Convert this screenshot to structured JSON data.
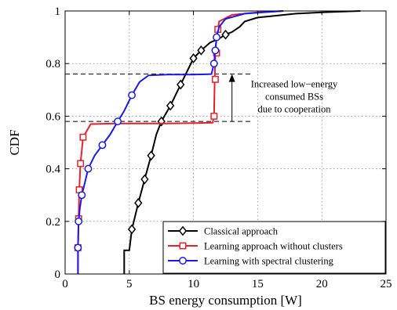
{
  "chart_data": {
    "type": "line",
    "title": "",
    "xlabel": "BS energy consumption [W]",
    "ylabel": "CDF",
    "xlim": [
      0,
      25
    ],
    "ylim": [
      0,
      1
    ],
    "xticks": [
      "0",
      "5",
      "10",
      "15",
      "20",
      "25"
    ],
    "yticks": [
      "0",
      "0.2",
      "0.4",
      "0.6",
      "0.8",
      "1"
    ],
    "grid": true,
    "legend_position": "bottom-right",
    "series": [
      {
        "name": "Classical approach",
        "color": "#000000",
        "marker": "diamond",
        "points": [
          [
            4.6,
            0
          ],
          [
            4.6,
            0.09
          ],
          [
            5.0,
            0.09
          ],
          [
            5.2,
            0.17
          ],
          [
            5.7,
            0.27
          ],
          [
            6.2,
            0.36
          ],
          [
            6.7,
            0.45
          ],
          [
            7.1,
            0.53
          ],
          [
            7.5,
            0.58
          ],
          [
            8.2,
            0.64
          ],
          [
            9.0,
            0.72
          ],
          [
            10.0,
            0.82
          ],
          [
            10.6,
            0.85
          ],
          [
            11.3,
            0.88
          ],
          [
            12.0,
            0.895
          ],
          [
            12.5,
            0.91
          ],
          [
            13.0,
            0.92
          ],
          [
            13.6,
            0.94
          ],
          [
            14.0,
            0.96
          ],
          [
            15.0,
            0.975
          ],
          [
            16.0,
            0.98
          ],
          [
            18.0,
            0.99
          ],
          [
            20.0,
            0.995
          ],
          [
            23.0,
            1.0
          ]
        ],
        "markers": [
          [
            5.2,
            0.17
          ],
          [
            5.7,
            0.27
          ],
          [
            6.2,
            0.36
          ],
          [
            6.7,
            0.45
          ],
          [
            7.5,
            0.58
          ],
          [
            8.2,
            0.64
          ],
          [
            9.0,
            0.72
          ],
          [
            10.0,
            0.82
          ],
          [
            10.6,
            0.85
          ],
          [
            12.5,
            0.91
          ]
        ]
      },
      {
        "name": "Learning approach without clusters",
        "color": "#e8202a",
        "marker": "square",
        "points": [
          [
            1.0,
            0
          ],
          [
            1.0,
            0.1
          ],
          [
            1.05,
            0.21
          ],
          [
            1.1,
            0.32
          ],
          [
            1.2,
            0.42
          ],
          [
            1.4,
            0.52
          ],
          [
            2.0,
            0.57
          ],
          [
            4.0,
            0.572
          ],
          [
            8.0,
            0.572
          ],
          [
            11.5,
            0.575
          ],
          [
            11.6,
            0.6
          ],
          [
            11.65,
            0.73
          ],
          [
            11.7,
            0.83
          ],
          [
            11.8,
            0.9
          ],
          [
            11.9,
            0.93
          ],
          [
            12.0,
            0.96
          ],
          [
            13.0,
            0.985
          ],
          [
            15.0,
            0.995
          ],
          [
            17.0,
            1.0
          ]
        ],
        "markers": [
          [
            1.0,
            0.1
          ],
          [
            1.05,
            0.21
          ],
          [
            1.1,
            0.32
          ],
          [
            1.2,
            0.42
          ],
          [
            1.4,
            0.52
          ],
          [
            11.6,
            0.6
          ],
          [
            11.7,
            0.74
          ],
          [
            11.8,
            0.84
          ],
          [
            11.9,
            0.93
          ]
        ]
      },
      {
        "name": "Learning with spectral clustering",
        "color": "#1a1aee",
        "marker": "circle",
        "points": [
          [
            1.0,
            0
          ],
          [
            1.0,
            0.1
          ],
          [
            1.05,
            0.2
          ],
          [
            1.15,
            0.25
          ],
          [
            1.3,
            0.3
          ],
          [
            1.6,
            0.36
          ],
          [
            1.8,
            0.4
          ],
          [
            2.3,
            0.45
          ],
          [
            2.9,
            0.49
          ],
          [
            3.5,
            0.53
          ],
          [
            4.1,
            0.58
          ],
          [
            4.6,
            0.62
          ],
          [
            5.2,
            0.68
          ],
          [
            5.8,
            0.73
          ],
          [
            6.5,
            0.755
          ],
          [
            8.0,
            0.758
          ],
          [
            10.0,
            0.758
          ],
          [
            11.4,
            0.76
          ],
          [
            11.6,
            0.8
          ],
          [
            11.7,
            0.85
          ],
          [
            11.8,
            0.9
          ],
          [
            12.0,
            0.94
          ],
          [
            12.5,
            0.97
          ],
          [
            14.0,
            0.99
          ],
          [
            17.0,
            1.0
          ]
        ],
        "markers": [
          [
            1.0,
            0.1
          ],
          [
            1.05,
            0.2
          ],
          [
            1.3,
            0.3
          ],
          [
            1.8,
            0.4
          ],
          [
            2.9,
            0.49
          ],
          [
            4.1,
            0.58
          ],
          [
            5.2,
            0.68
          ],
          [
            11.6,
            0.8
          ],
          [
            11.7,
            0.85
          ],
          [
            11.8,
            0.9
          ]
        ]
      }
    ],
    "annotation": {
      "lines": [
        "Increased low−energy",
        "consumed BSs",
        "due to cooperation"
      ],
      "arrow_x": 13.0,
      "arrow_from_y": 0.58,
      "arrow_to_y": 0.76
    },
    "reference_lines": [
      {
        "x_from": 0,
        "x_to": 14.5,
        "y": 0.76
      },
      {
        "x_from": 0,
        "x_to": 14.5,
        "y": 0.58
      }
    ]
  }
}
